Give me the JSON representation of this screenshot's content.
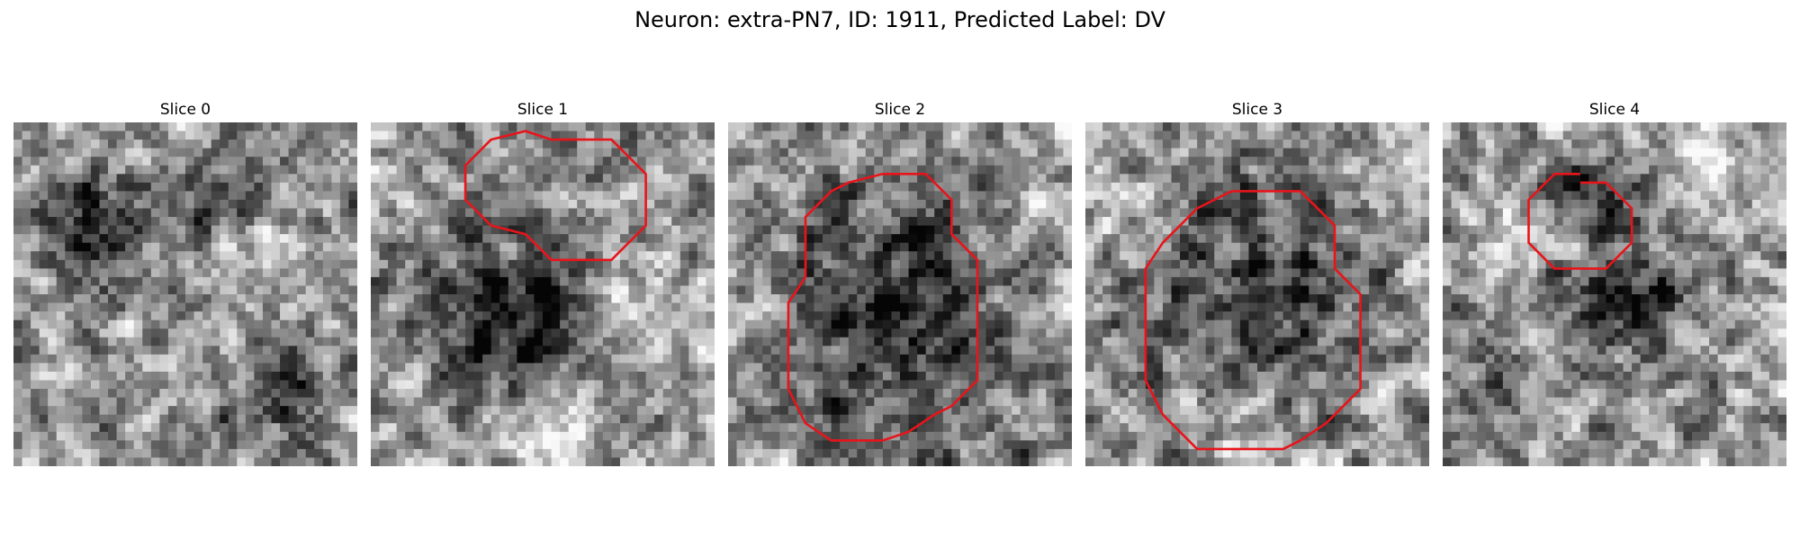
{
  "figure": {
    "title": "Neuron: extra-PN7, ID: 1911, Predicted Label: DV"
  },
  "colors": {
    "background": "#ffffff",
    "contour": "#e8141b",
    "text": "#000000"
  },
  "colormap": "grayscale",
  "slices": [
    {
      "title": "Slice 0",
      "has_contour": false,
      "blobs": [
        [
          0.25,
          0.3,
          0.18,
          -0.35
        ],
        [
          0.6,
          0.25,
          0.12,
          -0.35
        ],
        [
          0.8,
          0.75,
          0.15,
          -0.3
        ],
        [
          0.7,
          0.4,
          0.2,
          0.15
        ]
      ]
    },
    {
      "title": "Slice 1",
      "has_contour": true,
      "contour": [
        [
          21,
          2
        ],
        [
          28,
          2
        ],
        [
          32,
          6
        ],
        [
          32,
          12
        ],
        [
          28,
          16
        ],
        [
          21,
          16
        ],
        [
          18,
          13
        ],
        [
          14,
          12
        ],
        [
          11,
          9
        ],
        [
          11,
          5
        ],
        [
          14,
          2
        ],
        [
          18,
          1
        ],
        [
          21,
          2
        ]
      ],
      "blobs": [
        [
          0.4,
          0.55,
          0.22,
          -0.55
        ],
        [
          0.75,
          0.55,
          0.2,
          0.15
        ],
        [
          0.5,
          0.9,
          0.15,
          0.25
        ]
      ]
    },
    {
      "title": "Slice 2",
      "has_contour": true,
      "contour": [
        [
          18,
          6
        ],
        [
          23,
          6
        ],
        [
          26,
          9
        ],
        [
          26,
          13
        ],
        [
          29,
          16
        ],
        [
          29,
          30
        ],
        [
          26,
          33
        ],
        [
          24,
          34
        ],
        [
          21,
          36
        ],
        [
          18,
          37
        ],
        [
          12,
          37
        ],
        [
          9,
          35
        ],
        [
          8,
          33
        ],
        [
          7,
          31
        ],
        [
          7,
          21
        ],
        [
          9,
          18
        ],
        [
          9,
          11
        ],
        [
          12,
          8
        ],
        [
          14,
          7
        ],
        [
          18,
          6
        ]
      ],
      "blobs": [
        [
          0.5,
          0.55,
          0.35,
          -0.4
        ],
        [
          0.9,
          0.2,
          0.15,
          0.1
        ]
      ]
    },
    {
      "title": "Slice 3",
      "has_contour": true,
      "contour": [
        [
          17,
          8
        ],
        [
          25,
          8
        ],
        [
          29,
          12
        ],
        [
          29,
          17
        ],
        [
          32,
          20
        ],
        [
          32,
          31
        ],
        [
          28,
          35
        ],
        [
          25,
          37
        ],
        [
          23,
          38
        ],
        [
          13,
          38
        ],
        [
          9,
          34
        ],
        [
          8,
          32
        ],
        [
          7,
          30
        ],
        [
          7,
          17
        ],
        [
          9,
          14
        ],
        [
          12,
          11
        ],
        [
          13,
          10
        ],
        [
          17,
          8
        ]
      ],
      "blobs": [
        [
          0.5,
          0.5,
          0.3,
          -0.35
        ],
        [
          0.1,
          0.2,
          0.12,
          0.2
        ],
        [
          0.5,
          0.95,
          0.15,
          0.2
        ]
      ]
    },
    {
      "title": "Slice 4",
      "has_contour": true,
      "contour": [
        [
          16,
          7
        ],
        [
          19,
          7
        ],
        [
          22,
          10
        ],
        [
          22,
          14
        ],
        [
          19,
          17
        ],
        [
          13,
          17
        ],
        [
          10,
          14
        ],
        [
          10,
          9
        ],
        [
          13,
          6
        ],
        [
          16,
          6
        ]
      ],
      "blobs": [
        [
          0.55,
          0.5,
          0.17,
          -0.45
        ],
        [
          0.45,
          0.2,
          0.12,
          -0.4
        ],
        [
          0.2,
          0.35,
          0.1,
          0.25
        ],
        [
          0.15,
          0.8,
          0.12,
          -0.3
        ],
        [
          0.8,
          0.15,
          0.15,
          0.25
        ]
      ]
    }
  ]
}
